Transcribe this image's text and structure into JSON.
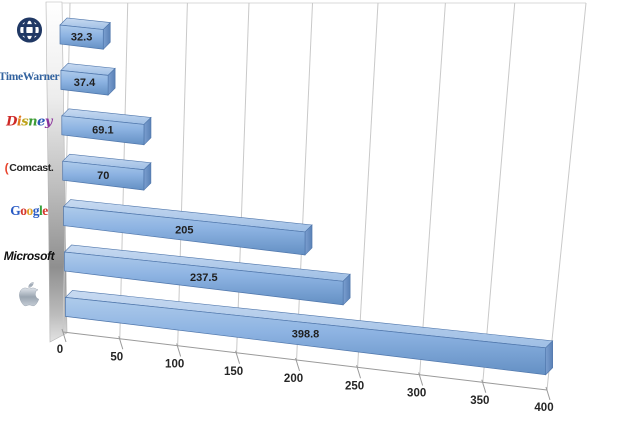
{
  "chart_data": {
    "type": "bar",
    "orientation": "horizontal",
    "projection": "3d",
    "title": "",
    "xlabel": "",
    "ylabel": "",
    "grid": true,
    "categories": [
      "Globe (web)",
      "TimeWarner",
      "Disney",
      "Comcast",
      "Google",
      "Microsoft",
      "Apple"
    ],
    "values": [
      32.3,
      37.4,
      69.1,
      70,
      205,
      237.5,
      398.8
    ],
    "data_labels": [
      "32.3",
      "37.4",
      "69.1",
      "70",
      "205",
      "237.5",
      "398.8"
    ],
    "x_axis": {
      "min": 0,
      "max": 400,
      "step": 50,
      "tick_labels": [
        "0",
        "50",
        "100",
        "150",
        "200",
        "250",
        "300",
        "350",
        "400"
      ]
    },
    "colors": {
      "bar_front_top": "#aecbeb",
      "bar_front_mid": "#8db3e2",
      "bar_front_bottom": "#6490c4",
      "bar_top_face_light": "#c8daf1",
      "bar_top_face_dark": "#9fbfe5",
      "bar_end_cap_light": "#7b9fd0",
      "bar_end_cap_dark": "#5a81b6",
      "bar_outline": "#4f76ab",
      "gridline": "#c9c9c9",
      "axis_line": "#9a9a9a",
      "tick_label": "#262626",
      "value_label": "#1f1f1f"
    }
  },
  "logos": {
    "globe": {
      "icon": "globe-icon",
      "color": "#203864"
    },
    "timewarner": {
      "text": "TimeWarner",
      "color": "#33639f"
    },
    "disney": {
      "letters": [
        {
          "ch": "D",
          "color": "#cf2a27"
        },
        {
          "ch": "i",
          "color": "#e07c20"
        },
        {
          "ch": "s",
          "color": "#c0a41d"
        },
        {
          "ch": "n",
          "color": "#3d9c35"
        },
        {
          "ch": "e",
          "color": "#2d58b8"
        },
        {
          "ch": "y",
          "color": "#8a2f9b"
        }
      ]
    },
    "comcast": {
      "arc": "(",
      "arc_color": "#e8432c",
      "text": "Comcast.",
      "color": "#262626"
    },
    "google": {
      "letters": [
        {
          "ch": "G",
          "color": "#2a5bc4"
        },
        {
          "ch": "o",
          "color": "#d6392e"
        },
        {
          "ch": "o",
          "color": "#e2a42b"
        },
        {
          "ch": "g",
          "color": "#2a5bc4"
        },
        {
          "ch": "l",
          "color": "#35a139"
        },
        {
          "ch": "e",
          "color": "#d6392e"
        }
      ]
    },
    "microsoft": {
      "text": "Microsoft",
      "color": "#111111"
    },
    "apple": {
      "icon": "apple-icon"
    }
  }
}
